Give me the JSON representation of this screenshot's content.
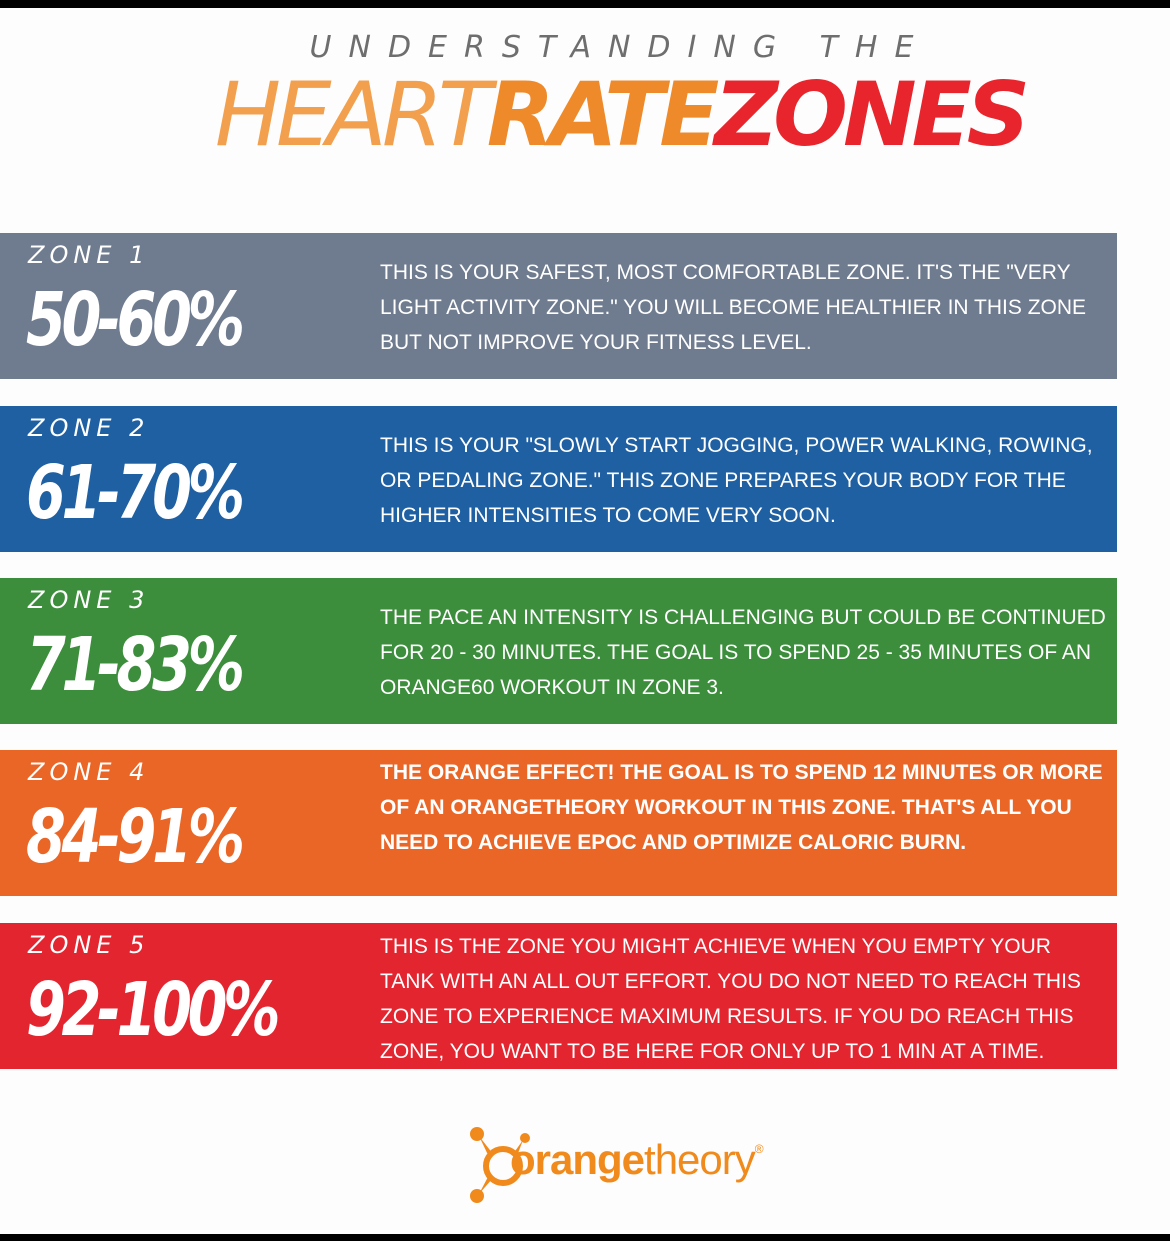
{
  "header": {
    "subtitle": "UNDERSTANDING THE",
    "title_part1": "HEART",
    "title_part2": "RATE",
    "title_part3": "ZONES"
  },
  "colors": {
    "title1": "#f2a04e",
    "title2": "#ef8a2a",
    "title3": "#e8252c",
    "zone1": "#6f7b8f",
    "zone2": "#1f60a3",
    "zone3": "#3c8d3c",
    "zone4": "#ea6627",
    "zone5": "#e32530"
  },
  "zones": [
    {
      "label": "ZONE 1",
      "percent": "50-60%",
      "description": "This is your safest, most comfortable zone. It's the \"very light activity zone.\" You will become healthier in this zone but not improve your fitness level."
    },
    {
      "label": "ZONE 2",
      "percent": "61-70%",
      "description": "This is your \"slowly start jogging, power walking, rowing, or pedaling zone.\" This zone prepares your body for the higher intensities to come very soon."
    },
    {
      "label": "ZONE 3",
      "percent": "71-83%",
      "description": "The pace an intensity is challenging but could be continued for 20 - 30 minutes. The goal is to spend 25 - 35 minutes of an Orange60 workout in zone 3."
    },
    {
      "label": "ZONE 4",
      "percent": "84-91%",
      "description": "The Orange Effect! The goal is to spend 12 minutes or more of an Orangetheory workout in this zone. That's all you need to achieve EPOC and optimize caloric burn."
    },
    {
      "label": "ZONE 5",
      "percent": "92-100%",
      "description": "This is the zone you might achieve when you empty your tank with an all out effort. You do not need to reach this zone to experience maximum results. If you do reach this zone, you want to be here for only up to  1 min at a time."
    }
  ],
  "logo": {
    "icon": "orangetheory-splat-icon",
    "text_part1": "orange",
    "text_part2": "theory",
    "trademark": "®"
  }
}
